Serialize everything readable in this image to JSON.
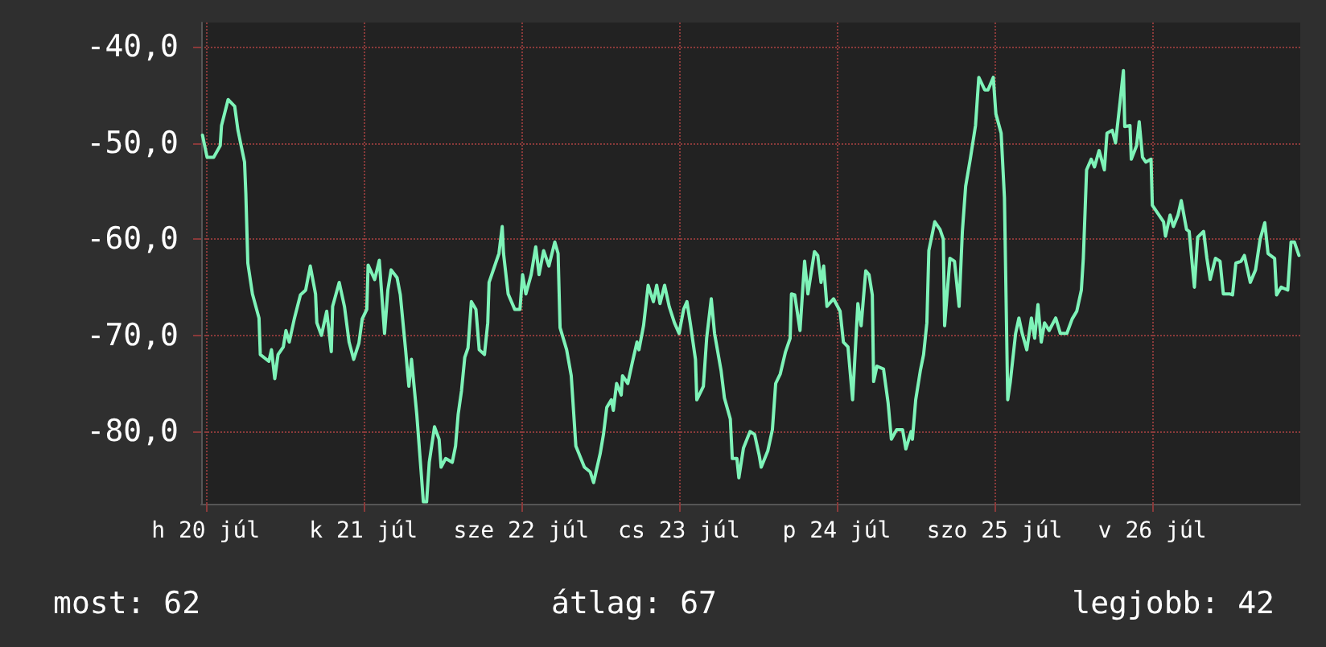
{
  "chart_data": {
    "type": "line",
    "x": [
      "--07-19T23:30",
      "--07-20T00:12",
      "--07-20T01:12",
      "--07-20T02:12",
      "--07-20T02:24",
      "--07-20T03:24",
      "--07-20T04:24",
      "--07-20T04:54",
      "--07-20T05:54",
      "--07-20T06:06",
      "--07-20T06:24",
      "--07-20T07:06",
      "--07-20T08:06",
      "--07-20T08:18",
      "--07-20T09:36",
      "--07-20T10:00",
      "--07-20T10:30",
      "--07-20T11:00",
      "--07-20T11:48",
      "--07-20T12:12",
      "--07-20T12:42",
      "--07-20T13:30",
      "--07-20T14:24",
      "--07-20T15:12",
      "--07-20T15:54",
      "--07-20T16:42",
      "--07-20T16:54",
      "--07-20T17:36",
      "--07-20T18:24",
      "--07-20T19:06",
      "--07-20T19:18",
      "--07-20T20:18",
      "--07-20T21:06",
      "--07-20T21:48",
      "--07-20T22:30",
      "--07-20T23:18",
      "--07-20T23:48",
      "--07-21T00:30",
      "--07-21T00:42",
      "--07-21T01:42",
      "--07-21T02:24",
      "--07-21T03:12",
      "--07-21T03:42",
      "--07-21T04:12",
      "--07-21T05:06",
      "--07-21T05:36",
      "--07-21T06:24",
      "--07-21T06:54",
      "--07-21T07:18",
      "--07-21T08:06",
      "--07-21T08:48",
      "--07-21T09:06",
      "--07-21T09:36",
      "--07-21T10:00",
      "--07-21T10:48",
      "--07-21T11:30",
      "--07-21T11:48",
      "--07-21T12:30",
      "--07-21T13:30",
      "--07-21T14:00",
      "--07-21T14:24",
      "--07-21T14:54",
      "--07-21T15:24",
      "--07-21T15:54",
      "--07-21T16:24",
      "--07-21T17:06",
      "--07-21T17:36",
      "--07-21T18:24",
      "--07-21T18:54",
      "--07-21T19:06",
      "--07-21T20:06",
      "--07-21T20:36",
      "--07-21T21:06",
      "--07-21T21:18",
      "--07-21T22:00",
      "--07-21T23:00",
      "--07-21T23:48",
      "--07-22T00:12",
      "--07-22T00:42",
      "--07-22T01:30",
      "--07-22T02:12",
      "--07-22T02:42",
      "--07-22T03:24",
      "--07-22T04:12",
      "--07-22T05:06",
      "--07-22T05:36",
      "--07-22T05:54",
      "--07-22T06:54",
      "--07-22T07:36",
      "--07-22T08:18",
      "--07-22T09:36",
      "--07-22T10:30",
      "--07-22T11:00",
      "--07-22T12:00",
      "--07-22T12:30",
      "--07-22T13:00",
      "--07-22T13:42",
      "--07-22T14:00",
      "--07-22T14:30",
      "--07-22T15:12",
      "--07-22T15:24",
      "--07-22T16:12",
      "--07-22T16:54",
      "--07-22T17:36",
      "--07-22T17:54",
      "--07-22T18:36",
      "--07-22T19:18",
      "--07-22T20:06",
      "--07-22T20:36",
      "--07-22T21:06",
      "--07-22T21:48",
      "--07-22T22:30",
      "--07-22T23:18",
      "--07-23T00:00",
      "--07-23T00:42",
      "--07-23T01:12",
      "--07-23T01:42",
      "--07-23T02:30",
      "--07-23T02:42",
      "--07-23T03:42",
      "--07-23T04:12",
      "--07-23T04:54",
      "--07-23T05:24",
      "--07-23T06:24",
      "--07-23T06:54",
      "--07-23T07:48",
      "--07-23T08:06",
      "--07-23T08:48",
      "--07-23T09:06",
      "--07-23T09:48",
      "--07-23T10:48",
      "--07-23T11:30",
      "--07-23T12:12",
      "--07-23T12:30",
      "--07-23T13:30",
      "--07-23T14:12",
      "--07-23T14:42",
      "--07-23T15:24",
      "--07-23T16:12",
      "--07-23T16:54",
      "--07-23T17:06",
      "--07-23T17:36",
      "--07-23T18:24",
      "--07-23T19:06",
      "--07-23T19:36",
      "--07-23T20:36",
      "--07-23T21:06",
      "--07-23T21:36",
      "--07-23T22:00",
      "--07-23T22:30",
      "--07-23T23:30",
      "--07-24T00:30",
      "--07-24T01:00",
      "--07-24T01:42",
      "--07-24T02:24",
      "--07-24T03:12",
      "--07-24T03:42",
      "--07-24T04:24",
      "--07-24T04:54",
      "--07-24T05:24",
      "--07-24T05:36",
      "--07-24T06:06",
      "--07-24T07:06",
      "--07-24T07:48",
      "--07-24T08:18",
      "--07-24T09:06",
      "--07-24T10:00",
      "--07-24T10:30",
      "--07-24T11:18",
      "--07-24T11:30",
      "--07-24T12:00",
      "--07-24T12:42",
      "--07-24T13:12",
      "--07-24T13:42",
      "--07-24T14:00",
      "--07-24T14:54",
      "--07-24T15:42",
      "--07-24T16:12",
      "--07-24T16:24",
      "--07-24T17:12",
      "--07-24T17:54",
      "--07-24T18:36",
      "--07-24T19:06",
      "--07-24T19:36",
      "--07-24T20:18",
      "--07-24T21:06",
      "--07-24T21:36",
      "--07-24T22:30",
      "--07-24T23:00",
      "--07-24T23:48",
      "--07-25T00:12",
      "--07-25T01:00",
      "--07-25T01:30",
      "--07-25T02:00",
      "--07-25T02:24",
      "--07-25T03:12",
      "--07-25T03:42",
      "--07-25T04:12",
      "--07-25T04:54",
      "--07-25T05:36",
      "--07-25T06:06",
      "--07-25T06:36",
      "--07-25T07:06",
      "--07-25T07:36",
      "--07-25T08:18",
      "--07-25T09:18",
      "--07-25T10:00",
      "--07-25T11:00",
      "--07-25T11:48",
      "--07-25T12:30",
      "--07-25T13:12",
      "--07-25T13:30",
      "--07-25T14:00",
      "--07-25T14:42",
      "--07-25T15:12",
      "--07-25T15:54",
      "--07-25T16:42",
      "--07-25T17:06",
      "--07-25T17:54",
      "--07-25T18:24",
      "--07-25T19:06",
      "--07-25T19:36",
      "--07-25T19:48",
      "--07-25T20:36",
      "--07-25T20:48",
      "--07-25T21:36",
      "--07-25T22:00",
      "--07-25T22:30",
      "--07-25T23:00",
      "--07-25T23:48",
      "--07-26T00:00",
      "--07-26T01:00",
      "--07-26T01:42",
      "--07-26T02:00",
      "--07-26T02:42",
      "--07-26T03:12",
      "--07-26T03:54",
      "--07-26T04:24",
      "--07-26T05:12",
      "--07-26T05:36",
      "--07-26T06:24",
      "--07-26T06:54",
      "--07-26T07:48",
      "--07-26T08:18",
      "--07-26T08:48",
      "--07-26T09:36",
      "--07-26T10:18",
      "--07-26T10:48",
      "--07-26T11:48",
      "--07-26T12:12",
      "--07-26T12:42",
      "--07-26T13:30",
      "--07-26T14:00",
      "--07-26T14:54",
      "--07-26T15:42",
      "--07-26T16:24",
      "--07-26T17:06",
      "--07-26T17:36",
      "--07-26T18:36",
      "--07-26T18:54",
      "--07-26T19:36",
      "--07-26T20:36",
      "--07-26T21:06",
      "--07-26T21:36",
      "--07-26T22:18"
    ],
    "series": [
      {
        "color": "#7ef3b8",
        "values": [
          -49.2,
          -51.5,
          -51.5,
          -50.3,
          -48.2,
          -45.5,
          -46.2,
          -48.7,
          -52,
          -55.3,
          -62.5,
          -65.7,
          -68.2,
          -72,
          -72.7,
          -71.5,
          -74.5,
          -72,
          -71.2,
          -69.5,
          -70.7,
          -68.2,
          -65.8,
          -65.3,
          -62.8,
          -65.7,
          -68.7,
          -70,
          -67.5,
          -71.7,
          -67,
          -64.5,
          -67,
          -70.7,
          -72.5,
          -70.8,
          -68.3,
          -67.3,
          -62.7,
          -64.2,
          -62.2,
          -69.8,
          -65.3,
          -63.2,
          -64,
          -65.8,
          -71.5,
          -75.3,
          -72.5,
          -78.2,
          -84.5,
          -87.3,
          -87.3,
          -83.2,
          -79.5,
          -80.8,
          -83.7,
          -82.8,
          -83.2,
          -81.5,
          -78.2,
          -75.8,
          -72.3,
          -71.3,
          -66.5,
          -67.3,
          -71.5,
          -72,
          -68.7,
          -64.5,
          -62.5,
          -61.5,
          -58.7,
          -61.5,
          -65.7,
          -67.3,
          -67.3,
          -63.7,
          -65.7,
          -63.7,
          -60.8,
          -63.7,
          -61.2,
          -62.8,
          -60.3,
          -61.5,
          -69.2,
          -71.5,
          -74.2,
          -81.5,
          -83.7,
          -84.2,
          -85.3,
          -82.3,
          -80.3,
          -77.5,
          -76.7,
          -77.8,
          -75,
          -76.2,
          -74.2,
          -75,
          -72.8,
          -70.7,
          -71.5,
          -69,
          -64.8,
          -66.5,
          -64.8,
          -66.7,
          -64.8,
          -67,
          -68.7,
          -69.8,
          -67.3,
          -66.5,
          -68.7,
          -72.5,
          -76.7,
          -75.3,
          -70.3,
          -66.2,
          -69.8,
          -73.7,
          -76.5,
          -78.7,
          -82.8,
          -82.8,
          -84.8,
          -81.7,
          -80,
          -80.3,
          -82.5,
          -83.7,
          -82,
          -79.8,
          -75,
          -74,
          -71.7,
          -70.3,
          -65.7,
          -65.8,
          -69.5,
          -62.3,
          -65.7,
          -61.3,
          -61.7,
          -64.5,
          -62.8,
          -67,
          -66.2,
          -67.5,
          -70.7,
          -71.2,
          -76.7,
          -66.7,
          -69,
          -63.3,
          -63.7,
          -65.8,
          -74.8,
          -73.2,
          -73.5,
          -77,
          -80.8,
          -79.8,
          -79.8,
          -81.8,
          -80,
          -80.8,
          -76.7,
          -73.7,
          -72,
          -68.7,
          -61.2,
          -58.2,
          -59,
          -60,
          -69,
          -62,
          -62.3,
          -67,
          -59.2,
          -54.5,
          -51.7,
          -48.2,
          -43.2,
          -44.5,
          -44.5,
          -43.2,
          -47,
          -49,
          -55.7,
          -76.7,
          -74.8,
          -69.8,
          -68.2,
          -69.8,
          -71.5,
          -68.2,
          -70.3,
          -66.8,
          -70.7,
          -68.7,
          -69.5,
          -68.2,
          -69.8,
          -69.8,
          -68.3,
          -67.5,
          -65.3,
          -62,
          -52.8,
          -51.7,
          -52.5,
          -50.8,
          -52.8,
          -49,
          -48.7,
          -50,
          -45.7,
          -42.5,
          -48.3,
          -48.2,
          -51.7,
          -50.3,
          -47.8,
          -51.5,
          -52,
          -51.7,
          -56.5,
          -57.5,
          -58.2,
          -59.7,
          -57.5,
          -58.7,
          -57.5,
          -56,
          -59,
          -59.2,
          -65,
          -59.8,
          -59.2,
          -62,
          -64.2,
          -62,
          -62.3,
          -65.7,
          -65.7,
          -65.8,
          -62.5,
          -62.3,
          -61.7,
          -64.5,
          -63.2,
          -60,
          -58.3,
          -61.5,
          -62,
          -65.8,
          -65,
          -65.3,
          -60.3,
          -60.3,
          -61.7
        ]
      }
    ],
    "xlim": [
      "--07-19T23:18",
      "--07-26T22:30"
    ],
    "xticks": [
      {
        "value": "--07-20T00:00",
        "label": "h 20 júl"
      },
      {
        "value": "--07-21T00:00",
        "label": "k 21 júl"
      },
      {
        "value": "--07-22T00:00",
        "label": "sze 22 júl"
      },
      {
        "value": "--07-23T00:00",
        "label": "cs 23 júl"
      },
      {
        "value": "--07-24T00:00",
        "label": "p 24 júl"
      },
      {
        "value": "--07-25T00:00",
        "label": "szo 25 júl"
      },
      {
        "value": "--07-26T00:00",
        "label": "v 26 júl"
      }
    ],
    "ylim": [
      -87.5,
      -37.5
    ],
    "yticks": [
      {
        "value": -80,
        "label": "-80,0"
      },
      {
        "value": -70,
        "label": "-70,0"
      },
      {
        "value": -60,
        "label": "-60,0"
      },
      {
        "value": -50,
        "label": "-50,0"
      },
      {
        "value": -40,
        "label": "-40,0"
      }
    ],
    "grid": true,
    "marker": "none",
    "line_style": "solid",
    "annotations": [
      "most: 62",
      "átlag: 67",
      "legjobb: 42"
    ]
  }
}
